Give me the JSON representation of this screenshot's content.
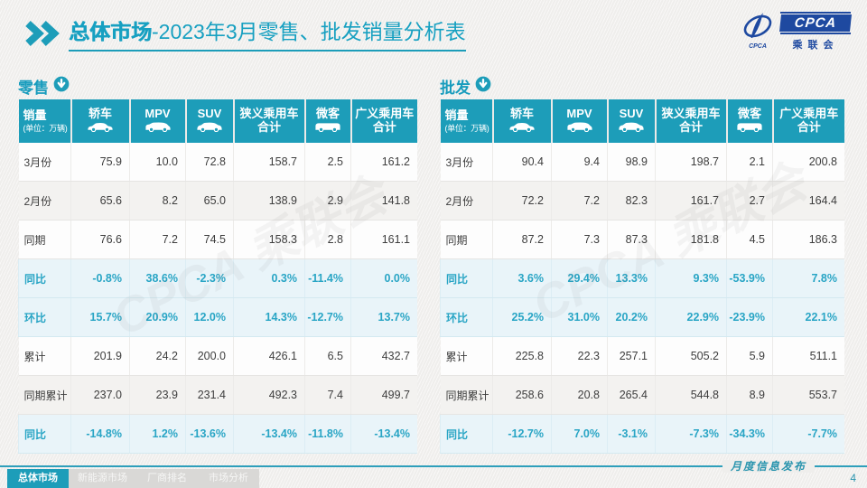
{
  "page": {
    "title_strong": "总体市场",
    "title_rest": "-2023年3月零售、批发销量分析表"
  },
  "logo": {
    "cpca": "CPCA",
    "assoc": "乘联会",
    "emblem_icon": "cpca-emblem-icon"
  },
  "header_icons": {
    "chevrons": "double-chevron-icon"
  },
  "columns": {
    "sales_label": "销量",
    "sales_unit": "(单位：万辆)",
    "cols": [
      {
        "key": "sedan",
        "label": "轿车",
        "label2": "",
        "icon": "sedan-icon"
      },
      {
        "key": "mpv",
        "label": "MPV",
        "label2": "",
        "icon": "mpv-icon"
      },
      {
        "key": "suv",
        "label": "SUV",
        "label2": "",
        "icon": "suv-icon"
      },
      {
        "key": "narrow-pv-total",
        "label": "狭义乘用车",
        "label2": "合计",
        "icon": ""
      },
      {
        "key": "microvan",
        "label": "微客",
        "label2": "",
        "icon": "microvan-icon"
      },
      {
        "key": "broad-pv-total",
        "label": "广义乘用车",
        "label2": "合计",
        "icon": ""
      }
    ]
  },
  "retail": {
    "name": "零售",
    "section_icon": "down-arrow-circle-icon",
    "rows": [
      {
        "label": "3月份",
        "type": "normal",
        "bg": "white",
        "values": [
          "75.9",
          "10.0",
          "72.8",
          "158.7",
          "2.5",
          "161.2"
        ]
      },
      {
        "label": "2月份",
        "type": "normal",
        "bg": "gray",
        "values": [
          "65.6",
          "8.2",
          "65.0",
          "138.9",
          "2.9",
          "141.8"
        ]
      },
      {
        "label": "同期",
        "type": "normal",
        "bg": "white",
        "values": [
          "76.6",
          "7.2",
          "74.5",
          "158.3",
          "2.8",
          "161.1"
        ]
      },
      {
        "label": "同比",
        "type": "percent",
        "bg": "blue",
        "values": [
          "-0.8%",
          "38.6%",
          "-2.3%",
          "0.3%",
          "-11.4%",
          "0.0%"
        ]
      },
      {
        "label": "环比",
        "type": "percent",
        "bg": "blue",
        "values": [
          "15.7%",
          "20.9%",
          "12.0%",
          "14.3%",
          "-12.7%",
          "13.7%"
        ]
      },
      {
        "label": "累计",
        "type": "normal",
        "bg": "white",
        "values": [
          "201.9",
          "24.2",
          "200.0",
          "426.1",
          "6.5",
          "432.7"
        ]
      },
      {
        "label": "同期累计",
        "type": "normal",
        "bg": "gray",
        "values": [
          "237.0",
          "23.9",
          "231.4",
          "492.3",
          "7.4",
          "499.7"
        ]
      },
      {
        "label": "同比",
        "type": "percent",
        "bg": "blue",
        "values": [
          "-14.8%",
          "1.2%",
          "-13.6%",
          "-13.4%",
          "-11.8%",
          "-13.4%"
        ]
      }
    ]
  },
  "wholesale": {
    "name": "批发",
    "section_icon": "down-arrow-circle-icon",
    "rows": [
      {
        "label": "3月份",
        "type": "normal",
        "bg": "white",
        "values": [
          "90.4",
          "9.4",
          "98.9",
          "198.7",
          "2.1",
          "200.8"
        ]
      },
      {
        "label": "2月份",
        "type": "normal",
        "bg": "gray",
        "values": [
          "72.2",
          "7.2",
          "82.3",
          "161.7",
          "2.7",
          "164.4"
        ]
      },
      {
        "label": "同期",
        "type": "normal",
        "bg": "white",
        "values": [
          "87.2",
          "7.3",
          "87.3",
          "181.8",
          "4.5",
          "186.3"
        ]
      },
      {
        "label": "同比",
        "type": "percent",
        "bg": "blue",
        "values": [
          "3.6%",
          "29.4%",
          "13.3%",
          "9.3%",
          "-53.9%",
          "7.8%"
        ]
      },
      {
        "label": "环比",
        "type": "percent",
        "bg": "blue",
        "values": [
          "25.2%",
          "31.0%",
          "20.2%",
          "22.9%",
          "-23.9%",
          "22.1%"
        ]
      },
      {
        "label": "累计",
        "type": "normal",
        "bg": "white",
        "values": [
          "225.8",
          "22.3",
          "257.1",
          "505.2",
          "5.9",
          "511.1"
        ]
      },
      {
        "label": "同期累计",
        "type": "normal",
        "bg": "gray",
        "values": [
          "258.6",
          "20.8",
          "265.4",
          "544.8",
          "8.9",
          "553.7"
        ]
      },
      {
        "label": "同比",
        "type": "percent",
        "bg": "blue",
        "values": [
          "-12.7%",
          "7.0%",
          "-3.1%",
          "-7.3%",
          "-34.3%",
          "-7.7%"
        ]
      }
    ]
  },
  "watermark_text": "CPCA 乘联会",
  "footer": {
    "tabs": [
      {
        "label": "总体市场",
        "active": true
      },
      {
        "label": "新能源市场",
        "active": false
      },
      {
        "label": "厂商排名",
        "active": false
      },
      {
        "label": "市场分析",
        "active": false
      }
    ],
    "publish_label": "月度信息发布",
    "page_number": "4"
  },
  "colors": {
    "teal_accent": "#1d9db9",
    "percent_text": "#29a5c5",
    "percent_row_bg": "#e9f4f9",
    "logo_blue": "#1e49a0",
    "dark_text": "#3d3d3d"
  }
}
